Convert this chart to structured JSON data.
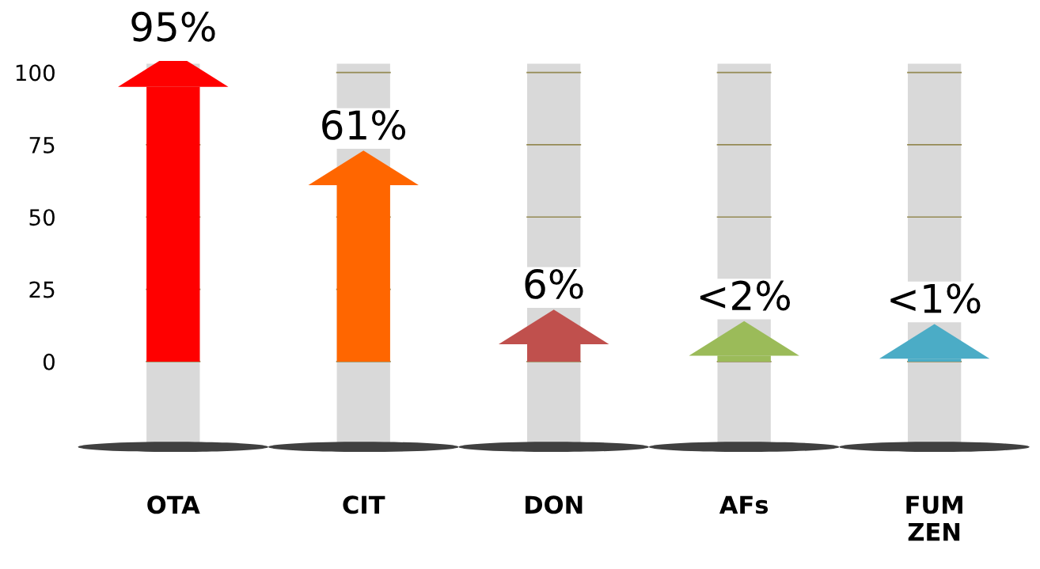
{
  "chart_data": {
    "type": "bar",
    "categories": [
      "OTA",
      "CIT",
      "DON",
      "AFs",
      "FUM\nZEN"
    ],
    "values": [
      95,
      61,
      6,
      2,
      1
    ],
    "value_labels": [
      "95%",
      "61%",
      "6%",
      "<2%",
      "<1%"
    ],
    "colors": [
      "#ff0000",
      "#ff6600",
      "#c0504d",
      "#9bbb59",
      "#4bacc6"
    ],
    "ylim": [
      -31,
      104
    ],
    "yticks": [
      0,
      25,
      50,
      75,
      100
    ],
    "grid": false
  }
}
